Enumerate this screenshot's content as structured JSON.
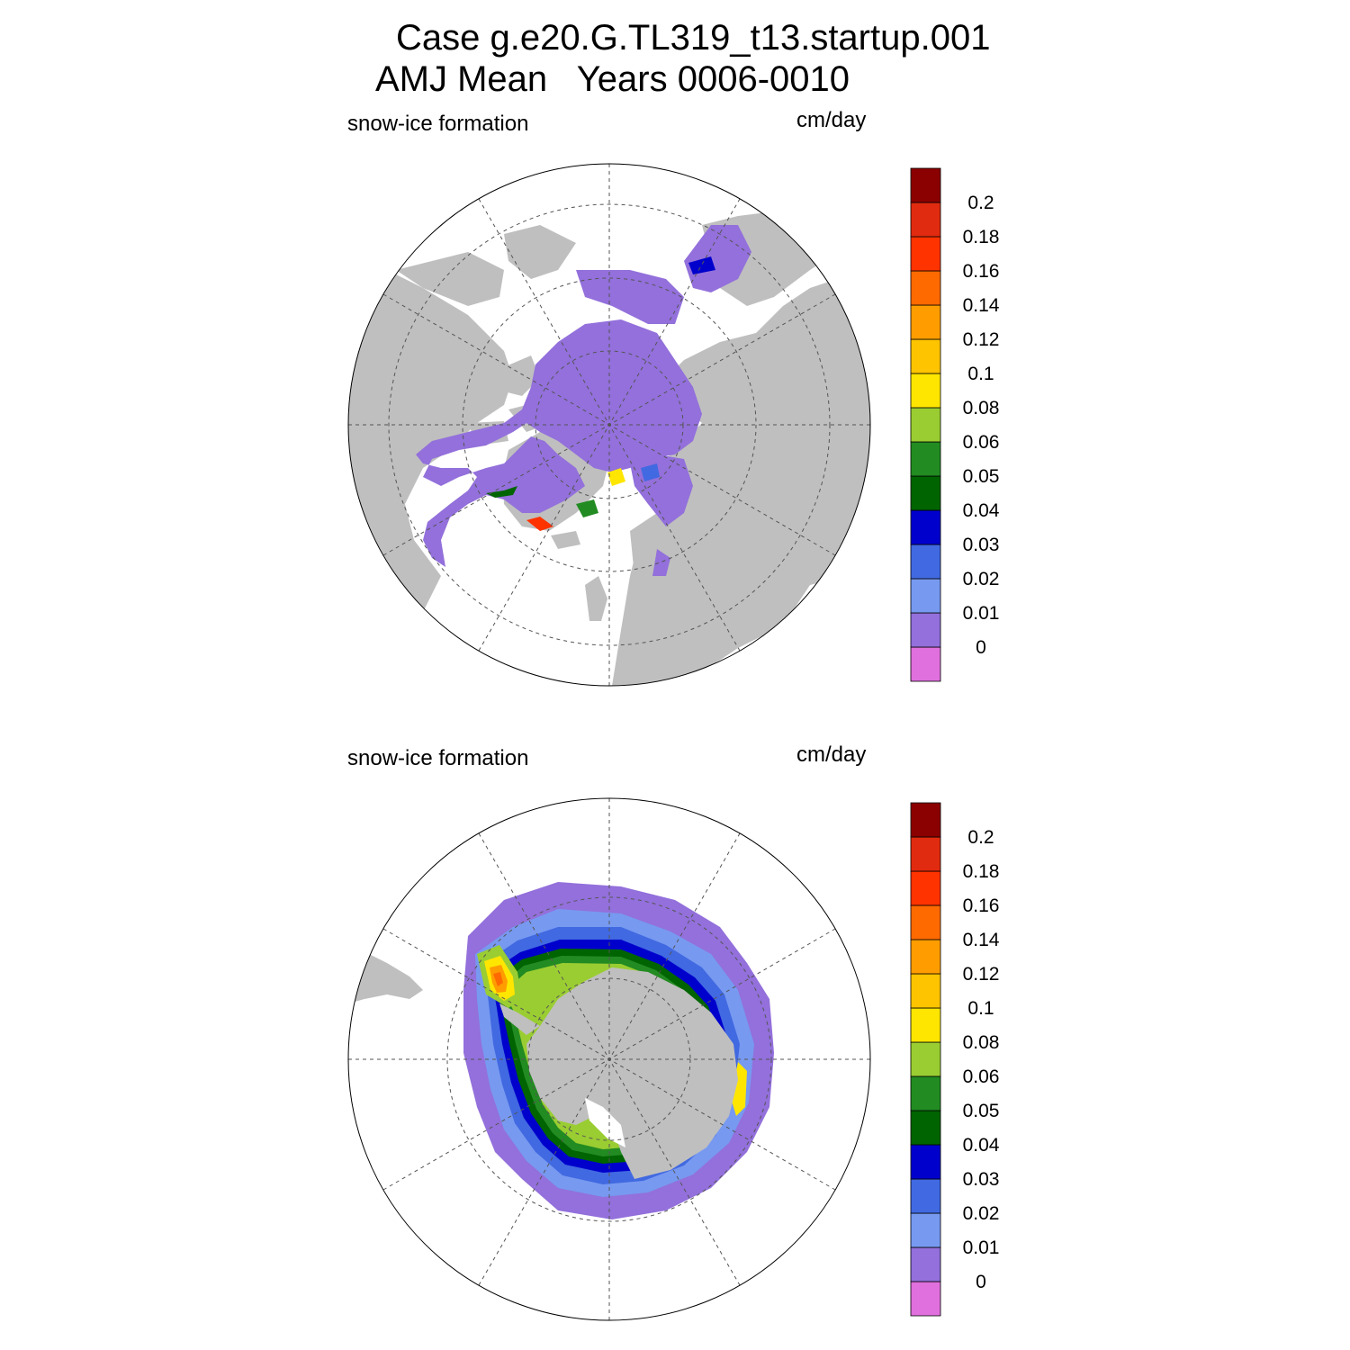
{
  "title": {
    "line1": "Case g.e20.G.TL319_t13.startup.001",
    "line2": "AMJ Mean   Years 0006-0010"
  },
  "colors": {
    "land": "#bfbfbf",
    "grid": "#555555",
    "levels_fill": [
      "#e070dd",
      "#9370db",
      "#7799f0",
      "#4169e1",
      "#0000cd",
      "#006400",
      "#228b22",
      "#9acd32",
      "#ffe600",
      "#ffc400",
      "#ff9d00",
      "#ff6a00",
      "#ff3300",
      "#e02b10",
      "#8b0000"
    ]
  },
  "panels": [
    {
      "id": "north",
      "left_label": "snow-ice formation",
      "right_label": "cm/day",
      "hemisphere": "north"
    },
    {
      "id": "south",
      "left_label": "snow-ice formation",
      "right_label": "cm/day",
      "hemisphere": "south"
    }
  ],
  "colorbar": {
    "tick_labels": [
      "0",
      "0.01",
      "0.02",
      "0.03",
      "0.04",
      "0.05",
      "0.06",
      "0.08",
      "0.1",
      "0.12",
      "0.14",
      "0.16",
      "0.18",
      "0.2"
    ]
  }
}
